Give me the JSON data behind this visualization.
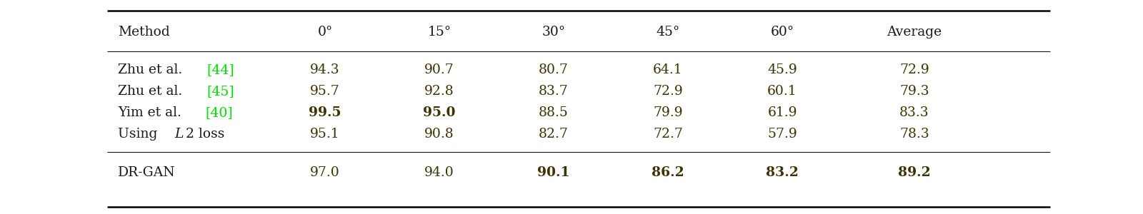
{
  "columns": [
    "Method",
    "0°",
    "15°",
    "30°",
    "45°",
    "60°",
    "Average"
  ],
  "rows": [
    {
      "method_plain": "Zhu et al. ",
      "method_ref": "[44]",
      "values": [
        "94.3",
        "90.7",
        "80.7",
        "64.1",
        "45.9",
        "72.9"
      ],
      "bold_values": [
        false,
        false,
        false,
        false,
        false,
        false
      ]
    },
    {
      "method_plain": "Zhu et al. ",
      "method_ref": "[45]",
      "values": [
        "95.7",
        "92.8",
        "83.7",
        "72.9",
        "60.1",
        "79.3"
      ],
      "bold_values": [
        false,
        false,
        false,
        false,
        false,
        false
      ]
    },
    {
      "method_plain": "Yim et al. ",
      "method_ref": "[40]",
      "values": [
        "99.5",
        "95.0",
        "88.5",
        "79.9",
        "61.9",
        "83.3"
      ],
      "bold_values": [
        true,
        true,
        false,
        false,
        false,
        false
      ]
    },
    {
      "method_plain": "Using ",
      "method_ref": "",
      "method_italic": "L",
      "method_suffix": "2 loss",
      "values": [
        "95.1",
        "90.8",
        "82.7",
        "72.7",
        "57.9",
        "78.3"
      ],
      "bold_values": [
        false,
        false,
        false,
        false,
        false,
        false
      ]
    }
  ],
  "bottom_row": {
    "method": "DR-GAN",
    "values": [
      "97.0",
      "94.0",
      "90.1",
      "86.2",
      "83.2",
      "89.2"
    ],
    "bold_values": [
      false,
      false,
      true,
      true,
      true,
      true
    ]
  },
  "data_color": "#3d3200",
  "header_color": "#1a1a1a",
  "ref_color": "#00dd00",
  "bg_color": "#ffffff",
  "thick_lw": 1.8,
  "thin_lw": 0.7,
  "font_size": 13.5
}
